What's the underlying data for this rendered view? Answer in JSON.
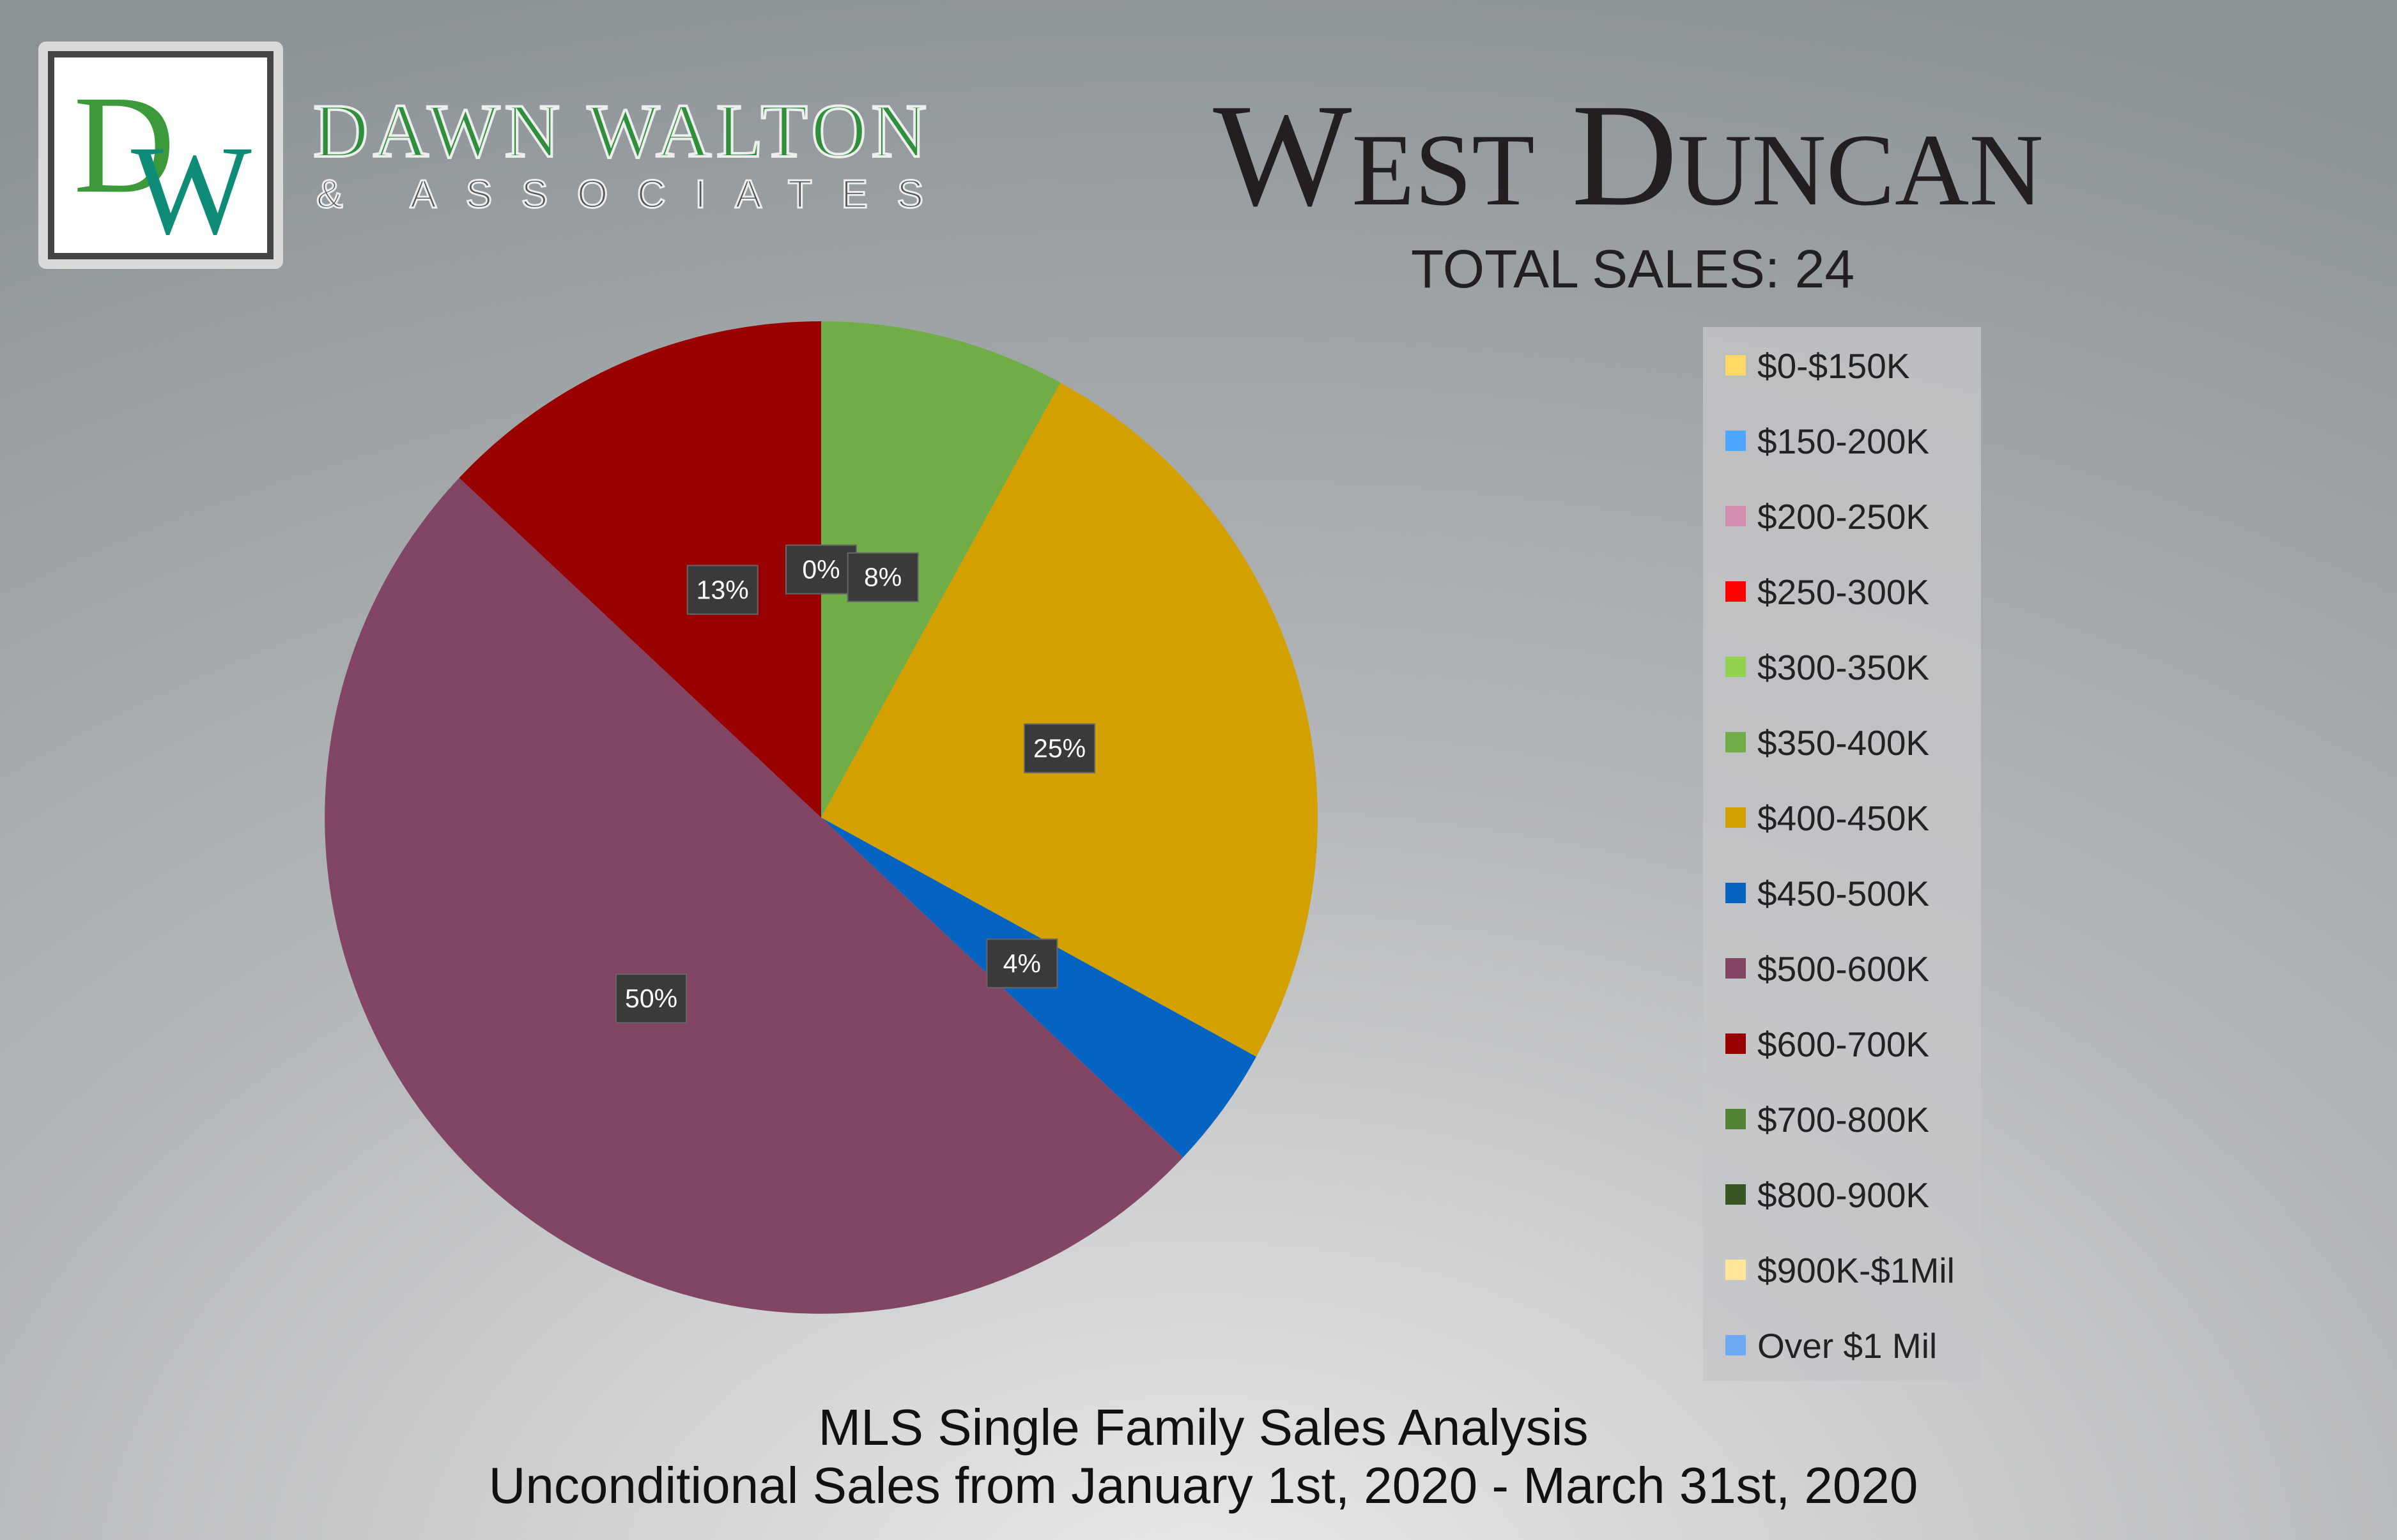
{
  "logo": {
    "mark": [
      "D",
      "W"
    ],
    "name": "DAWN WALTON",
    "tagline": "& ASSOCIATES"
  },
  "chart_data": {
    "type": "pie",
    "title": "West Duncan",
    "subtitle": "TOTAL SALES: 24",
    "caption": [
      "MLS Single Family Sales Analysis",
      "Unconditional Sales from January 1st, 2020 - March 31st, 2020"
    ],
    "categories": [
      "$0-$150K",
      "$150-200K",
      "$200-250K",
      "$250-300K",
      "$300-350K",
      "$350-400K",
      "$400-450K",
      "$450-500K",
      "$500-600K",
      "$600-700K",
      "$700-800K",
      "$800-900K",
      "$900K-$1Mil",
      "Over $1 Mil"
    ],
    "values": [
      null,
      null,
      null,
      null,
      0,
      8,
      25,
      4,
      50,
      13,
      null,
      null,
      null,
      null
    ],
    "value_labels": [
      null,
      null,
      null,
      null,
      "0%",
      "8%",
      "25%",
      "4%",
      "50%",
      "13%",
      null,
      null,
      null,
      null
    ],
    "colors": [
      "#ffd966",
      "#4da6ff",
      "#d48fb0",
      "#ff0000",
      "#92d050",
      "#70ad47",
      "#d4a000",
      "#0563c1",
      "#834564",
      "#990000",
      "#548235",
      "#375623",
      "#ffe699",
      "#6fa8f5"
    ],
    "legend": "right"
  }
}
